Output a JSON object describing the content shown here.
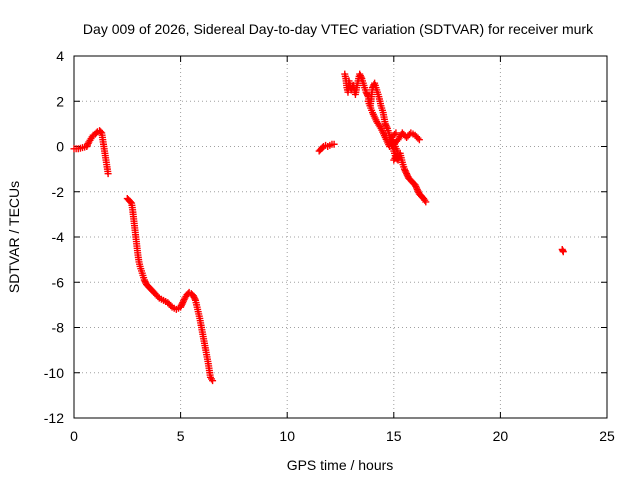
{
  "chart_data": {
    "type": "scatter",
    "title": "Day 009 of 2026, Sidereal Day-to-day VTEC variation (SDTVAR) for receiver murk",
    "xlabel": "GPS time / hours",
    "ylabel": "SDTVAR / TECUs",
    "xlim": [
      0,
      25
    ],
    "ylim": [
      -12,
      4
    ],
    "xticks": [
      0,
      5,
      10,
      15,
      20,
      25
    ],
    "yticks": [
      -12,
      -10,
      -8,
      -6,
      -4,
      -2,
      0,
      2,
      4
    ],
    "grid": true,
    "marker": "+",
    "color": "#ff0000",
    "series": [
      {
        "name": "SDTVAR",
        "segments": [
          [
            [
              0.0,
              -0.1
            ],
            [
              0.2,
              -0.1
            ],
            [
              0.4,
              -0.05
            ],
            [
              0.6,
              0.0
            ],
            [
              0.7,
              0.2
            ],
            [
              0.8,
              0.35
            ],
            [
              0.9,
              0.5
            ],
            [
              1.0,
              0.55
            ],
            [
              1.1,
              0.65
            ],
            [
              1.2,
              0.7
            ],
            [
              1.3,
              0.6
            ],
            [
              1.35,
              0.3
            ],
            [
              1.4,
              0.0
            ],
            [
              1.45,
              -0.3
            ],
            [
              1.5,
              -0.6
            ],
            [
              1.55,
              -0.9
            ],
            [
              1.6,
              -1.2
            ]
          ],
          [
            [
              2.5,
              -2.3
            ],
            [
              2.6,
              -2.4
            ],
            [
              2.7,
              -2.5
            ],
            [
              2.75,
              -2.8
            ],
            [
              2.8,
              -3.2
            ],
            [
              2.85,
              -3.6
            ],
            [
              2.9,
              -4.0
            ],
            [
              2.95,
              -4.4
            ],
            [
              3.0,
              -4.8
            ],
            [
              3.05,
              -5.1
            ],
            [
              3.1,
              -5.3
            ],
            [
              3.2,
              -5.6
            ],
            [
              3.3,
              -5.9
            ],
            [
              3.4,
              -6.1
            ],
            [
              3.5,
              -6.2
            ],
            [
              3.6,
              -6.3
            ],
            [
              3.7,
              -6.4
            ],
            [
              3.8,
              -6.5
            ],
            [
              4.0,
              -6.7
            ],
            [
              4.2,
              -6.8
            ],
            [
              4.4,
              -6.9
            ],
            [
              4.6,
              -7.1
            ],
            [
              4.8,
              -7.2
            ],
            [
              5.0,
              -7.1
            ],
            [
              5.1,
              -6.9
            ],
            [
              5.2,
              -6.7
            ],
            [
              5.3,
              -6.55
            ],
            [
              5.4,
              -6.45
            ],
            [
              5.5,
              -6.5
            ],
            [
              5.6,
              -6.6
            ],
            [
              5.7,
              -6.8
            ],
            [
              5.8,
              -7.2
            ],
            [
              5.9,
              -7.6
            ],
            [
              6.0,
              -8.1
            ],
            [
              6.1,
              -8.6
            ],
            [
              6.2,
              -9.1
            ],
            [
              6.3,
              -9.6
            ],
            [
              6.35,
              -9.9
            ],
            [
              6.4,
              -10.2
            ],
            [
              6.5,
              -10.35
            ]
          ],
          [
            [
              11.5,
              -0.2
            ],
            [
              11.6,
              -0.1
            ],
            [
              11.7,
              0.0
            ],
            [
              11.8,
              0.05
            ],
            [
              11.9,
              0.0
            ],
            [
              12.0,
              0.05
            ],
            [
              12.1,
              0.1
            ],
            [
              12.2,
              0.1
            ]
          ],
          [
            [
              12.7,
              3.2
            ],
            [
              12.75,
              3.0
            ],
            [
              12.8,
              2.6
            ],
            [
              12.85,
              2.4
            ],
            [
              12.9,
              2.9
            ],
            [
              13.0,
              2.5
            ],
            [
              13.1,
              2.7
            ],
            [
              13.2,
              2.3
            ],
            [
              13.3,
              2.8
            ],
            [
              13.4,
              3.2
            ],
            [
              13.5,
              3.0
            ],
            [
              13.6,
              2.7
            ],
            [
              13.7,
              2.4
            ],
            [
              13.8,
              2.2
            ],
            [
              13.9,
              1.8
            ],
            [
              14.0,
              2.6
            ],
            [
              14.1,
              2.8
            ],
            [
              14.2,
              2.5
            ],
            [
              14.3,
              2.2
            ],
            [
              14.4,
              1.8
            ],
            [
              14.5,
              1.5
            ],
            [
              14.6,
              1.0
            ],
            [
              14.7,
              0.8
            ],
            [
              14.8,
              0.5
            ],
            [
              14.9,
              0.2
            ],
            [
              15.0,
              -0.2
            ],
            [
              15.1,
              -0.5
            ],
            [
              15.2,
              -0.6
            ],
            [
              15.3,
              -0.3
            ],
            [
              15.4,
              -0.7
            ],
            [
              15.5,
              -1.0
            ],
            [
              15.6,
              -1.2
            ],
            [
              15.7,
              -1.4
            ],
            [
              15.8,
              -1.5
            ],
            [
              15.9,
              -1.6
            ],
            [
              16.0,
              -1.7
            ],
            [
              16.1,
              -1.9
            ],
            [
              16.2,
              -2.1
            ],
            [
              16.3,
              -2.2
            ],
            [
              16.4,
              -2.3
            ],
            [
              16.5,
              -2.45
            ],
            [
              13.8,
              2.0
            ],
            [
              14.0,
              1.5
            ],
            [
              14.2,
              1.1
            ],
            [
              14.4,
              0.8
            ],
            [
              14.6,
              0.4
            ],
            [
              14.8,
              0.0
            ],
            [
              15.0,
              0.1
            ],
            [
              15.2,
              0.3
            ],
            [
              15.4,
              0.6
            ],
            [
              15.6,
              0.4
            ],
            [
              15.8,
              0.6
            ],
            [
              16.0,
              0.5
            ],
            [
              16.2,
              0.3
            ],
            [
              15.0,
              -0.6
            ],
            [
              15.2,
              -0.3
            ],
            [
              14.9,
              0.4
            ],
            [
              15.1,
              0.6
            ]
          ],
          [
            [
              22.9,
              -4.55
            ],
            [
              22.95,
              -4.65
            ]
          ]
        ]
      }
    ]
  }
}
